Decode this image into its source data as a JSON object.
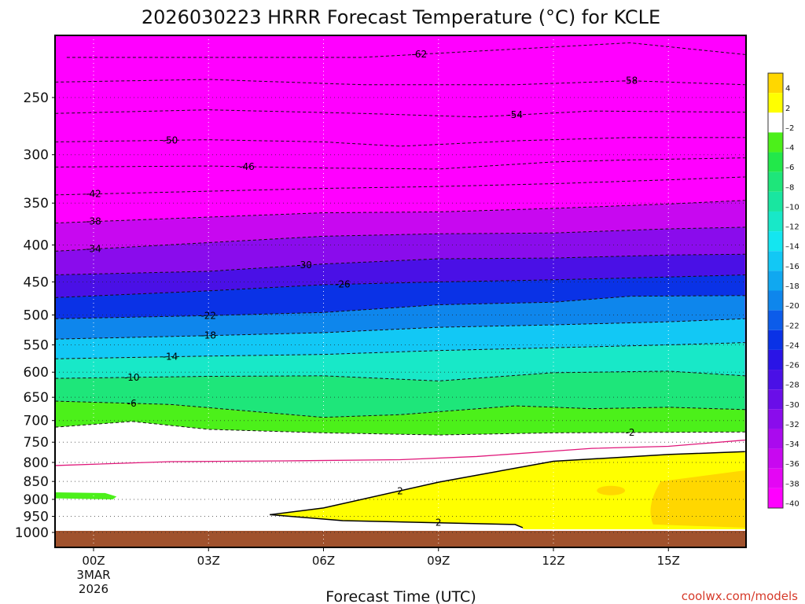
{
  "chart_data": {
    "type": "heatmap",
    "title": "2026030223 HRRR Forecast Temperature (°C) for KCLE",
    "xlabel": "Forecast Time (UTC)",
    "ylabel": "",
    "x_ticks": [
      {
        "hour": 0,
        "label": "00Z",
        "sub": [
          "3MAR",
          "2026"
        ]
      },
      {
        "hour": 3,
        "label": "03Z",
        "sub": []
      },
      {
        "hour": 6,
        "label": "06Z",
        "sub": []
      },
      {
        "hour": 9,
        "label": "09Z",
        "sub": []
      },
      {
        "hour": 12,
        "label": "12Z",
        "sub": []
      },
      {
        "hour": 15,
        "label": "15Z",
        "sub": []
      }
    ],
    "xlim": [
      -1,
      17
    ],
    "ylim_hpa": [
      1025,
      200
    ],
    "y_scale": "log-pressure",
    "y_ticks": [
      250,
      300,
      350,
      400,
      450,
      500,
      550,
      600,
      650,
      700,
      750,
      800,
      850,
      900,
      950,
      1000
    ],
    "grid": true,
    "surface_pressure_hpa": 995,
    "colorbar": {
      "placement": "right",
      "levels": [
        4,
        2,
        -2,
        -4,
        -6,
        -8,
        -10,
        -12,
        -14,
        -16,
        -18,
        -20,
        -22,
        -24,
        -26,
        -28,
        -30,
        -32,
        -34,
        -36,
        -38,
        -40
      ],
      "colors": [
        "#ffd700",
        "#ffff00",
        "#ffffff",
        "#4cf01a",
        "#22e84a",
        "#1ee67a",
        "#19e6a0",
        "#18e8c8",
        "#14e6f0",
        "#12c8f5",
        "#10a8f0",
        "#0e86ec",
        "#0c5cea",
        "#0a32e6",
        "#2a14e6",
        "#4a10e6",
        "#6a0ee8",
        "#8a0cec",
        "#aa0aee",
        "#c808f0",
        "#e406f4",
        "#ff00ff"
      ]
    },
    "series": [
      {
        "name": "isotherms",
        "values": [
          {
            "level": -62,
            "points": [
              [
                -0.7,
                220
              ],
              [
                7,
                220
              ],
              [
                14,
                210
              ],
              [
                17,
                218
              ]
            ]
          },
          {
            "level": -58,
            "points": [
              [
                -1,
                238
              ],
              [
                3,
                236
              ],
              [
                7,
                240
              ],
              [
                11,
                240
              ],
              [
                14,
                237
              ],
              [
                17,
                240
              ]
            ]
          },
          {
            "level": -54,
            "points": [
              [
                -1,
                263
              ],
              [
                3,
                260
              ],
              [
                7,
                263
              ],
              [
                10,
                266
              ],
              [
                13,
                261
              ],
              [
                17,
                262
              ]
            ]
          },
          {
            "level": -50,
            "points": [
              [
                -1,
                288
              ],
              [
                3,
                286
              ],
              [
                6,
                288
              ],
              [
                8,
                292
              ],
              [
                11,
                287
              ],
              [
                14,
                284
              ],
              [
                17,
                284
              ]
            ]
          },
          {
            "level": -46,
            "points": [
              [
                -1,
                312
              ],
              [
                3,
                311
              ],
              [
                6,
                313
              ],
              [
                9,
                314
              ],
              [
                12,
                307
              ],
              [
                14,
                305
              ],
              [
                17,
                303
              ]
            ]
          },
          {
            "level": -42,
            "points": [
              [
                -1,
                341
              ],
              [
                3,
                337
              ],
              [
                6,
                334
              ],
              [
                9,
                332
              ],
              [
                12,
                329
              ],
              [
                15,
                325
              ],
              [
                17,
                322
              ]
            ]
          },
          {
            "level": -38,
            "points": [
              [
                -1,
                373
              ],
              [
                3,
                366
              ],
              [
                6,
                361
              ],
              [
                9,
                360
              ],
              [
                12,
                356
              ],
              [
                15,
                351
              ],
              [
                17,
                347
              ]
            ]
          },
          {
            "level": -34,
            "points": [
              [
                -1,
                408
              ],
              [
                3,
                397
              ],
              [
                6,
                389
              ],
              [
                9,
                386
              ],
              [
                12,
                385
              ],
              [
                15,
                380
              ],
              [
                17,
                378
              ]
            ]
          },
          {
            "level": -30,
            "points": [
              [
                -1,
                440
              ],
              [
                3,
                435
              ],
              [
                6,
                425
              ],
              [
                9,
                418
              ],
              [
                12,
                417
              ],
              [
                15,
                413
              ],
              [
                17,
                412
              ]
            ]
          },
          {
            "level": -26,
            "points": [
              [
                -1,
                473
              ],
              [
                3,
                463
              ],
              [
                6,
                454
              ],
              [
                9,
                450
              ],
              [
                12,
                447
              ],
              [
                15,
                443
              ],
              [
                17,
                440
              ]
            ]
          },
          {
            "level": -22,
            "points": [
              [
                -1,
                506
              ],
              [
                3,
                501
              ],
              [
                6,
                496
              ],
              [
                9,
                484
              ],
              [
                12,
                480
              ],
              [
                14,
                471
              ],
              [
                17,
                470
              ]
            ]
          },
          {
            "level": -18,
            "points": [
              [
                -1,
                540
              ],
              [
                3,
                534
              ],
              [
                6,
                529
              ],
              [
                9,
                520
              ],
              [
                12,
                516
              ],
              [
                15,
                511
              ],
              [
                17,
                506
              ]
            ]
          },
          {
            "level": -14,
            "points": [
              [
                -1,
                575
              ],
              [
                3,
                570
              ],
              [
                6,
                567
              ],
              [
                9,
                560
              ],
              [
                12,
                555
              ],
              [
                15,
                550
              ],
              [
                17,
                546
              ]
            ]
          },
          {
            "level": -10,
            "points": [
              [
                -1,
                612
              ],
              [
                3,
                608
              ],
              [
                6,
                607
              ],
              [
                9,
                617
              ],
              [
                12,
                601
              ],
              [
                15,
                598
              ],
              [
                17,
                607
              ]
            ]
          },
          {
            "level": -6,
            "points": [
              [
                -1,
                658
              ],
              [
                2,
                665
              ],
              [
                6,
                693
              ],
              [
                8,
                687
              ],
              [
                11,
                668
              ],
              [
                13,
                674
              ],
              [
                15,
                671
              ],
              [
                17,
                676
              ]
            ]
          },
          {
            "level": -2,
            "points": [
              [
                -1,
                715
              ],
              [
                1,
                702
              ],
              [
                3,
                720
              ],
              [
                6,
                728
              ],
              [
                9,
                733
              ],
              [
                12,
                728
              ],
              [
                17,
                726
              ]
            ]
          },
          {
            "level": 2,
            "points": [
              [
                4.6,
                945
              ],
              [
                6,
                925
              ],
              [
                9,
                852
              ],
              [
                12,
                797
              ],
              [
                15,
                780
              ],
              [
                17,
                773
              ]
            ]
          },
          {
            "level": 2,
            "points": [
              [
                4.6,
                945
              ],
              [
                6.5,
                963
              ],
              [
                11,
                975
              ],
              [
                11.2,
                985
              ]
            ]
          }
        ]
      }
    ],
    "freezing_line_label": "0°C (magenta)",
    "credit": "coolwx.com/models"
  }
}
